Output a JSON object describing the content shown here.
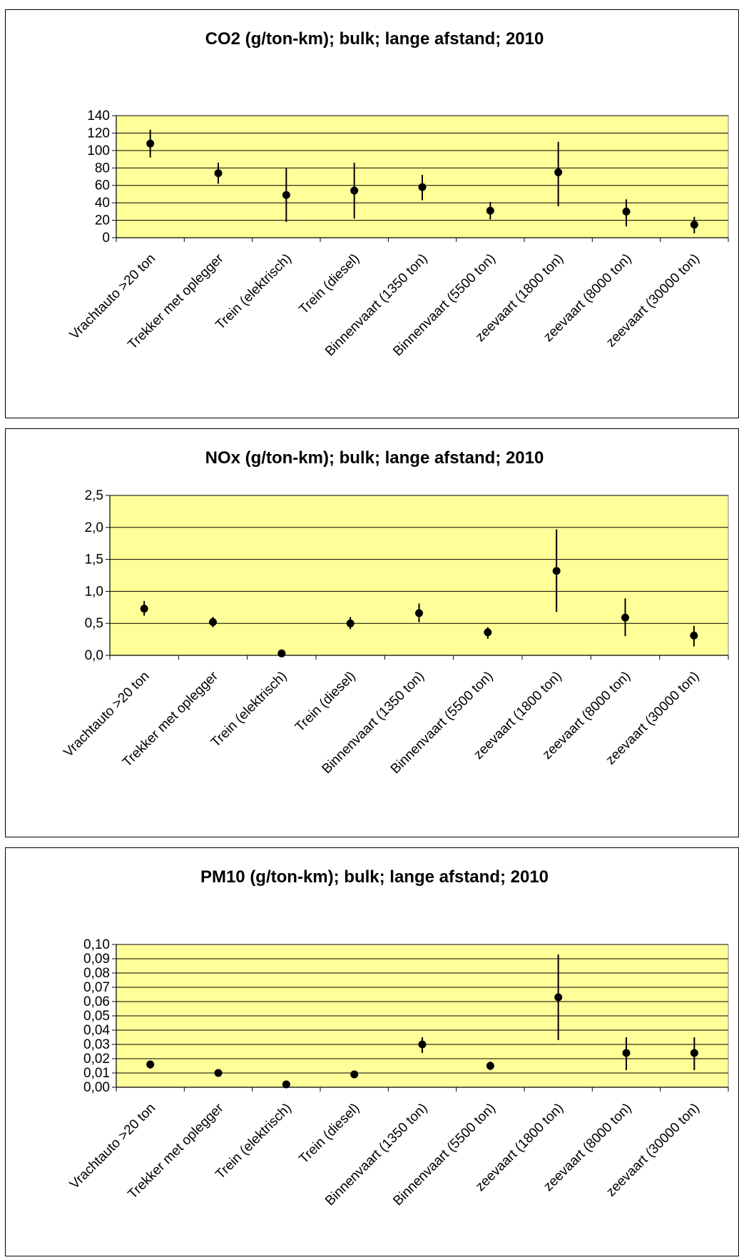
{
  "chart_data": [
    {
      "type": "scatter",
      "title": "CO2 (g/ton-km); bulk; lange afstand; 2010",
      "categories": [
        "Vrachtauto >20 ton",
        "Trekker met oplegger",
        "Trein (elektrisch)",
        "Trein (diesel)",
        "Binnenvaart (1350 ton)",
        "Binnenvaart (5500 ton)",
        "zeevaart (1800 ton)",
        "zeevaart (8000 ton)",
        "zeevaart (30000 ton)"
      ],
      "values": [
        108,
        74,
        49,
        54,
        58,
        31,
        75,
        30,
        15
      ],
      "error_low": [
        92,
        62,
        18,
        22,
        43,
        21,
        36,
        13,
        5
      ],
      "error_high": [
        124,
        86,
        80,
        86,
        72,
        41,
        110,
        44,
        24
      ],
      "ylim": [
        0,
        140
      ],
      "yticks": [
        "0",
        "20",
        "40",
        "60",
        "80",
        "100",
        "120",
        "140"
      ],
      "grid": true,
      "plot_bg": "#ffff99"
    },
    {
      "type": "scatter",
      "title": "NOx (g/ton-km); bulk; lange afstand; 2010",
      "categories": [
        "Vrachtauto >20 ton",
        "Trekker met oplegger",
        "Trein (elektrisch)",
        "Trein (diesel)",
        "Binnenvaart (1350 ton)",
        "Binnenvaart (5500 ton)",
        "zeevaart (1800 ton)",
        "zeevaart (8000 ton)",
        "zeevaart (30000 ton)"
      ],
      "values": [
        0.73,
        0.52,
        0.03,
        0.5,
        0.66,
        0.36,
        1.32,
        0.59,
        0.31
      ],
      "error_low": [
        0.62,
        0.44,
        0.02,
        0.41,
        0.52,
        0.26,
        0.68,
        0.3,
        0.14
      ],
      "error_high": [
        0.85,
        0.6,
        0.04,
        0.6,
        0.81,
        0.44,
        1.97,
        0.89,
        0.46
      ],
      "ylim": [
        0,
        2.5
      ],
      "yticks": [
        "0,0",
        "0,5",
        "1,0",
        "1,5",
        "2,0",
        "2,5"
      ],
      "grid": true,
      "plot_bg": "#ffff99"
    },
    {
      "type": "scatter",
      "title": "PM10 (g/ton-km); bulk; lange afstand; 2010",
      "categories": [
        "Vrachtauto >20 ton",
        "Trekker met oplegger",
        "Trein (elektrisch)",
        "Trein (diesel)",
        "Binnenvaart (1350 ton)",
        "Binnenvaart (5500 ton)",
        "zeevaart (1800 ton)",
        "zeevaart (8000 ton)",
        "zeevaart (30000 ton)"
      ],
      "values": [
        0.016,
        0.01,
        0.002,
        0.009,
        0.03,
        0.015,
        0.063,
        0.024,
        0.024
      ],
      "error_low": [
        0.013,
        0.009,
        0.0015,
        0.007,
        0.024,
        0.012,
        0.033,
        0.012,
        0.012
      ],
      "error_high": [
        0.018,
        0.011,
        0.0025,
        0.011,
        0.035,
        0.018,
        0.093,
        0.035,
        0.035
      ],
      "ylim": [
        0,
        0.1
      ],
      "yticks": [
        "0,00",
        "0,01",
        "0,02",
        "0,03",
        "0,04",
        "0,05",
        "0,06",
        "0,07",
        "0,08",
        "0,09",
        "0,10"
      ],
      "grid": true,
      "plot_bg": "#ffff99"
    }
  ]
}
